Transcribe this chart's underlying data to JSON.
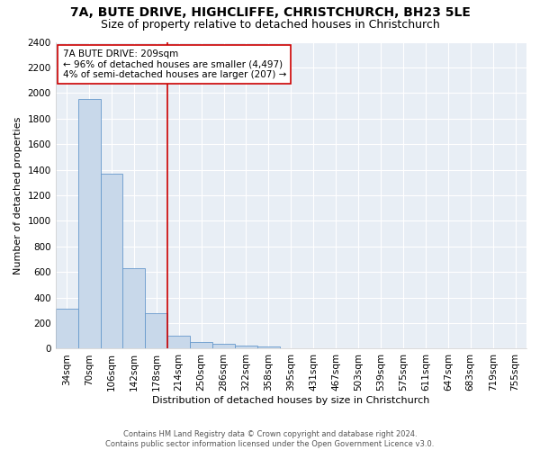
{
  "title": "7A, BUTE DRIVE, HIGHCLIFFE, CHRISTCHURCH, BH23 5LE",
  "subtitle": "Size of property relative to detached houses in Christchurch",
  "xlabel": "Distribution of detached houses by size in Christchurch",
  "ylabel": "Number of detached properties",
  "bar_labels": [
    "34sqm",
    "70sqm",
    "106sqm",
    "142sqm",
    "178sqm",
    "214sqm",
    "250sqm",
    "286sqm",
    "322sqm",
    "358sqm",
    "395sqm",
    "431sqm",
    "467sqm",
    "503sqm",
    "539sqm",
    "575sqm",
    "611sqm",
    "647sqm",
    "683sqm",
    "719sqm",
    "755sqm"
  ],
  "bar_values": [
    315,
    1950,
    1370,
    630,
    280,
    100,
    55,
    40,
    25,
    20,
    0,
    0,
    0,
    0,
    0,
    0,
    0,
    0,
    0,
    0,
    0
  ],
  "bar_color": "#c8d8ea",
  "bar_edge_color": "#6699cc",
  "property_line_x": 4.5,
  "property_line_color": "#cc0000",
  "annotation_text": "7A BUTE DRIVE: 209sqm\n← 96% of detached houses are smaller (4,497)\n4% of semi-detached houses are larger (207) →",
  "annotation_box_color": "#ffffff",
  "annotation_box_edge_color": "#cc0000",
  "footer_line1": "Contains HM Land Registry data © Crown copyright and database right 2024.",
  "footer_line2": "Contains public sector information licensed under the Open Government Licence v3.0.",
  "ylim": [
    0,
    2400
  ],
  "yticks": [
    0,
    200,
    400,
    600,
    800,
    1000,
    1200,
    1400,
    1600,
    1800,
    2000,
    2200,
    2400
  ],
  "bg_color": "#ffffff",
  "plot_bg_color": "#e8eef5",
  "grid_color": "#ffffff",
  "title_fontsize": 10,
  "subtitle_fontsize": 9,
  "axis_label_fontsize": 8,
  "tick_fontsize": 7.5,
  "annotation_fontsize": 7.5,
  "footer_fontsize": 6
}
